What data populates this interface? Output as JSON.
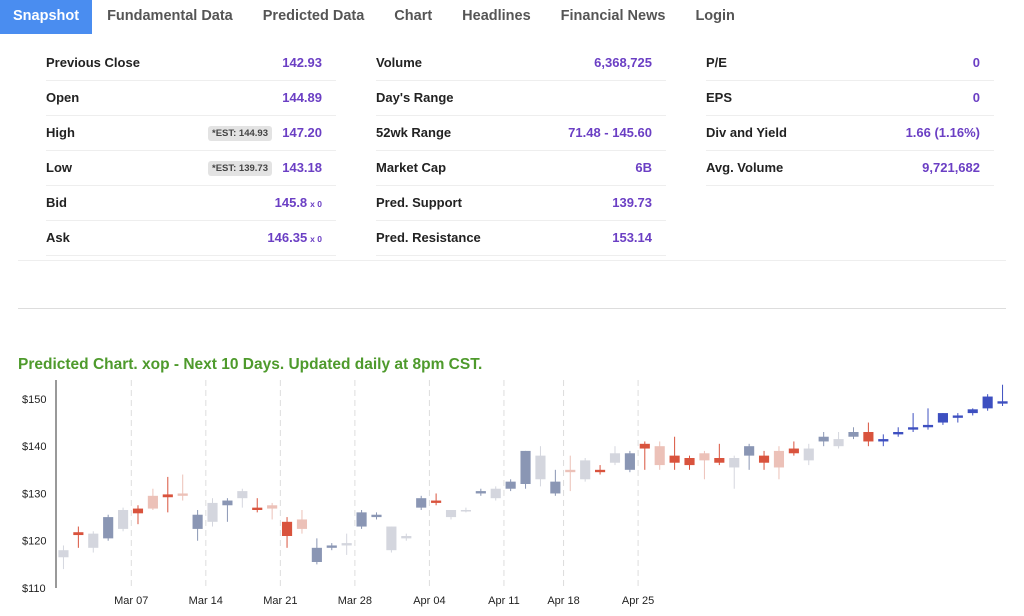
{
  "tabs": [
    {
      "label": "Snapshot",
      "active": true
    },
    {
      "label": "Fundamental Data",
      "active": false
    },
    {
      "label": "Predicted Data",
      "active": false
    },
    {
      "label": "Chart",
      "active": false
    },
    {
      "label": "Headlines",
      "active": false
    },
    {
      "label": "Financial News",
      "active": false
    },
    {
      "label": "Login",
      "active": false
    }
  ],
  "stats": {
    "col1": [
      {
        "label": "Previous Close",
        "value": "142.93"
      },
      {
        "label": "Open",
        "value": "144.89"
      },
      {
        "label": "High",
        "value": "147.20",
        "est": "*EST: 144.93"
      },
      {
        "label": "Low",
        "value": "143.18",
        "est": "*EST: 139.73"
      },
      {
        "label": "Bid",
        "value": "145.8",
        "suffix": "x 0"
      },
      {
        "label": "Ask",
        "value": "146.35",
        "suffix": "x 0"
      }
    ],
    "col2": [
      {
        "label": "Volume",
        "value": "6,368,725"
      },
      {
        "label": "Day's Range",
        "value": ""
      },
      {
        "label": "52wk Range",
        "value": "71.48 - 145.60"
      },
      {
        "label": "Market Cap",
        "value": "6B"
      },
      {
        "label": "Pred. Support",
        "value": "139.73"
      },
      {
        "label": "Pred. Resistance",
        "value": "153.14"
      }
    ],
    "col3": [
      {
        "label": "P/E",
        "value": "0"
      },
      {
        "label": "EPS",
        "value": "0"
      },
      {
        "label": "Div and Yield",
        "value": "1.66 (1.16%)"
      },
      {
        "label": "Avg. Volume",
        "value": "9,721,682"
      }
    ]
  },
  "chart": {
    "title": "Predicted Chart. xop - Next 10 Days. Updated daily at 8pm CST."
  },
  "chart_data": {
    "type": "candlestick",
    "ylim": [
      110,
      154
    ],
    "yticks": [
      110,
      120,
      130,
      140,
      150
    ],
    "ytick_labels": [
      "$110",
      "$120",
      "$130",
      "$140",
      "$150"
    ],
    "xtick_labels": [
      "Mar 07",
      "Mar 14",
      "Mar 21",
      "Mar 28",
      "Apr 04",
      "Apr 11",
      "Apr 18",
      "Apr 25"
    ],
    "xtick_index": [
      4,
      9,
      14,
      19,
      24,
      29,
      33,
      38
    ],
    "colors": {
      "bull_dark": "#8a96b4",
      "bear_dark": "#d9533d",
      "bull_light": "#d4d6de",
      "bear_light": "#ecc1b8",
      "predicted": "#3d4fc0",
      "grid": "#dddddd"
    },
    "candles": [
      {
        "o": 116.5,
        "h": 119,
        "l": 114,
        "c": 118,
        "t": "bull_light"
      },
      {
        "o": 121.8,
        "h": 123,
        "l": 118.5,
        "c": 121.2,
        "t": "bear_dark"
      },
      {
        "o": 118.5,
        "h": 122,
        "l": 117.5,
        "c": 121.5,
        "t": "bull_light"
      },
      {
        "o": 120.5,
        "h": 125.5,
        "l": 120,
        "c": 125,
        "t": "bull_dark"
      },
      {
        "o": 122.5,
        "h": 127,
        "l": 122,
        "c": 126.5,
        "t": "bull_light"
      },
      {
        "o": 126.8,
        "h": 127.5,
        "l": 123.5,
        "c": 125.8,
        "t": "bear_dark"
      },
      {
        "o": 129.5,
        "h": 131,
        "l": 126.5,
        "c": 126.8,
        "t": "bear_light"
      },
      {
        "o": 129.2,
        "h": 133.5,
        "l": 126,
        "c": 129.8,
        "t": "bear_dark"
      },
      {
        "o": 130,
        "h": 134,
        "l": 128.5,
        "c": 129.5,
        "t": "bear_light"
      },
      {
        "o": 122.5,
        "h": 126.5,
        "l": 120,
        "c": 125.5,
        "t": "bull_dark"
      },
      {
        "o": 124,
        "h": 129,
        "l": 123,
        "c": 128,
        "t": "bull_light"
      },
      {
        "o": 127.5,
        "h": 129,
        "l": 124,
        "c": 128.5,
        "t": "bull_dark"
      },
      {
        "o": 129,
        "h": 131,
        "l": 127,
        "c": 130.5,
        "t": "bull_light"
      },
      {
        "o": 127,
        "h": 129,
        "l": 126,
        "c": 126.5,
        "t": "bear_dark"
      },
      {
        "o": 127.5,
        "h": 128,
        "l": 124.5,
        "c": 126.8,
        "t": "bear_light"
      },
      {
        "o": 124,
        "h": 125,
        "l": 118.5,
        "c": 121,
        "t": "bear_dark"
      },
      {
        "o": 122.5,
        "h": 126.5,
        "l": 121.5,
        "c": 124.5,
        "t": "bear_light"
      },
      {
        "o": 115.5,
        "h": 120.5,
        "l": 115,
        "c": 118.5,
        "t": "bull_dark"
      },
      {
        "o": 118.5,
        "h": 119.5,
        "l": 118,
        "c": 119,
        "t": "bull_dark"
      },
      {
        "o": 119,
        "h": 121.5,
        "l": 117,
        "c": 119.5,
        "t": "bull_light"
      },
      {
        "o": 123,
        "h": 126.5,
        "l": 122.5,
        "c": 126,
        "t": "bull_dark"
      },
      {
        "o": 125,
        "h": 126,
        "l": 124.5,
        "c": 125.5,
        "t": "bull_dark"
      },
      {
        "o": 118,
        "h": 123,
        "l": 117.5,
        "c": 123,
        "t": "bull_light"
      },
      {
        "o": 120.5,
        "h": 121.5,
        "l": 120,
        "c": 121,
        "t": "bull_light"
      },
      {
        "o": 127,
        "h": 129.5,
        "l": 126.5,
        "c": 129,
        "t": "bull_dark"
      },
      {
        "o": 128.5,
        "h": 130,
        "l": 127.5,
        "c": 128,
        "t": "bear_dark"
      },
      {
        "o": 125,
        "h": 126.5,
        "l": 124.5,
        "c": 126.5,
        "t": "bull_light"
      },
      {
        "o": 126.5,
        "h": 127,
        "l": 126,
        "c": 126.2,
        "t": "bull_light"
      },
      {
        "o": 130,
        "h": 131,
        "l": 129.5,
        "c": 130.5,
        "t": "bull_dark"
      },
      {
        "o": 129,
        "h": 131.5,
        "l": 128.5,
        "c": 131,
        "t": "bull_light"
      },
      {
        "o": 131,
        "h": 133,
        "l": 130.5,
        "c": 132.5,
        "t": "bull_dark"
      },
      {
        "o": 132,
        "h": 139,
        "l": 131,
        "c": 139,
        "t": "bull_dark"
      },
      {
        "o": 133,
        "h": 140,
        "l": 131.5,
        "c": 138,
        "t": "bull_light"
      },
      {
        "o": 132.5,
        "h": 135,
        "l": 129.5,
        "c": 130,
        "t": "bull_dark"
      },
      {
        "o": 135,
        "h": 138,
        "l": 130.5,
        "c": 134.5,
        "t": "bear_light"
      },
      {
        "o": 133,
        "h": 137.5,
        "l": 132.5,
        "c": 137,
        "t": "bull_light"
      },
      {
        "o": 135,
        "h": 136,
        "l": 134,
        "c": 134.5,
        "t": "bear_dark"
      },
      {
        "o": 136.5,
        "h": 140,
        "l": 136,
        "c": 138.5,
        "t": "bull_light"
      },
      {
        "o": 135,
        "h": 139,
        "l": 134.5,
        "c": 138.5,
        "t": "bull_dark"
      },
      {
        "o": 140.5,
        "h": 141,
        "l": 135,
        "c": 139.5,
        "t": "bear_dark"
      },
      {
        "o": 140,
        "h": 141,
        "l": 135,
        "c": 136,
        "t": "bear_light"
      },
      {
        "o": 138,
        "h": 142,
        "l": 135,
        "c": 136.5,
        "t": "bear_dark"
      },
      {
        "o": 137.5,
        "h": 138,
        "l": 135,
        "c": 136,
        "t": "bear_dark"
      },
      {
        "o": 138.5,
        "h": 139,
        "l": 133,
        "c": 137,
        "t": "bear_light"
      },
      {
        "o": 137.5,
        "h": 140.5,
        "l": 136,
        "c": 136.5,
        "t": "bear_dark"
      },
      {
        "o": 135.5,
        "h": 138,
        "l": 131,
        "c": 137.5,
        "t": "bull_light"
      },
      {
        "o": 138,
        "h": 140.5,
        "l": 135,
        "c": 140,
        "t": "bull_dark"
      },
      {
        "o": 138,
        "h": 139,
        "l": 135,
        "c": 136.5,
        "t": "bear_dark"
      },
      {
        "o": 139,
        "h": 140,
        "l": 133,
        "c": 135.5,
        "t": "bear_light"
      },
      {
        "o": 138.5,
        "h": 141,
        "l": 138,
        "c": 139.5,
        "t": "bear_dark"
      },
      {
        "o": 137,
        "h": 140.5,
        "l": 136,
        "c": 139.5,
        "t": "bull_light"
      },
      {
        "o": 141,
        "h": 143,
        "l": 140,
        "c": 142,
        "t": "bull_dark"
      },
      {
        "o": 140,
        "h": 143,
        "l": 139.5,
        "c": 141.5,
        "t": "bull_light"
      },
      {
        "o": 142,
        "h": 144,
        "l": 141.5,
        "c": 143,
        "t": "bull_dark"
      },
      {
        "o": 143,
        "h": 145,
        "l": 140,
        "c": 141,
        "t": "bear_dark"
      }
    ],
    "predicted_candles": [
      {
        "o": 141,
        "h": 142.5,
        "l": 140,
        "c": 141.5
      },
      {
        "o": 142.5,
        "h": 144,
        "l": 142,
        "c": 143
      },
      {
        "o": 143.5,
        "h": 147,
        "l": 143,
        "c": 144
      },
      {
        "o": 144,
        "h": 148,
        "l": 143.5,
        "c": 144.5
      },
      {
        "o": 145,
        "h": 147,
        "l": 144.5,
        "c": 147
      },
      {
        "o": 146,
        "h": 147,
        "l": 145,
        "c": 146.5
      },
      {
        "o": 147,
        "h": 148,
        "l": 146.5,
        "c": 147.8
      },
      {
        "o": 148,
        "h": 151,
        "l": 147.5,
        "c": 150.5
      },
      {
        "o": 149,
        "h": 153,
        "l": 148.5,
        "c": 149.5
      }
    ]
  }
}
